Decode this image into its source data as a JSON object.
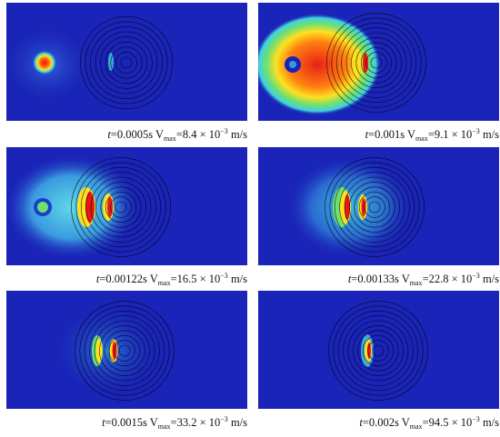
{
  "panels": [
    {
      "t_label": "t",
      "t_value": "=0.0005s",
      "v_label": "V",
      "v_sub": "max",
      "v_value": "=8.4 × 10",
      "v_exp": "−3",
      "v_unit": "m/s"
    },
    {
      "t_label": "t",
      "t_value": "=0.001s",
      "v_label": "V",
      "v_sub": "max",
      "v_value": "=9.1 × 10",
      "v_exp": "−3",
      "v_unit": "m/s"
    },
    {
      "t_label": "t",
      "t_value": "=0.00122s",
      "v_label": "V",
      "v_sub": "max",
      "v_value": "=16.5 × 10",
      "v_exp": "−3",
      "v_unit": "m/s"
    },
    {
      "t_label": "t",
      "t_value": "=0.00133s",
      "v_label": "V",
      "v_sub": "max",
      "v_value": "=22.8 × 10",
      "v_exp": "−3",
      "v_unit": "m/s"
    },
    {
      "t_label": "t",
      "t_value": "=0.0015s",
      "v_label": "V",
      "v_sub": "max",
      "v_value": "=33.2 × 10",
      "v_exp": "−3",
      "v_unit": "m/s"
    },
    {
      "t_label": "t",
      "t_value": "=0.002s",
      "v_label": "V",
      "v_sub": "max",
      "v_value": "=94.5 × 10",
      "v_exp": "−3",
      "v_unit": "m/s"
    }
  ],
  "colors": {
    "background": "#1a24b8",
    "deep": "#101aa6",
    "cyan": "#3fd0e0",
    "green": "#70e070",
    "yellow": "#ffe020",
    "red": "#e81818",
    "contour": "#000000"
  }
}
